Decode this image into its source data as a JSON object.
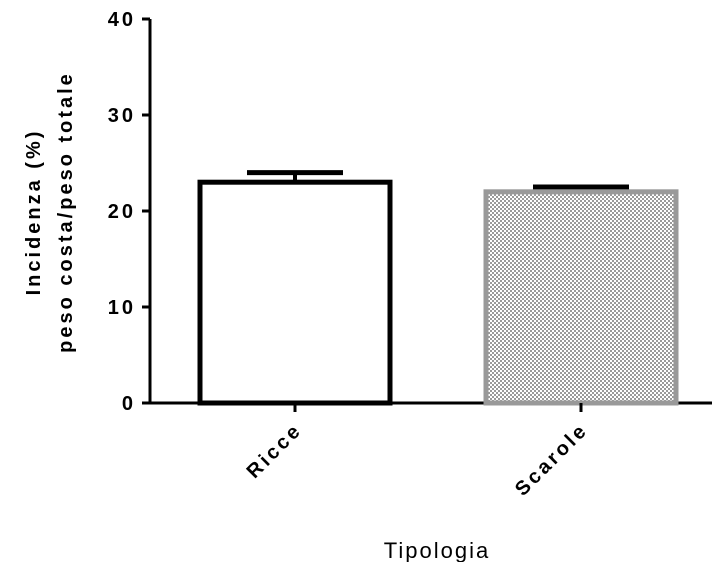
{
  "chart_data": {
    "type": "bar",
    "categories": [
      "Ricce",
      "Scarole"
    ],
    "values": [
      23,
      22
    ],
    "errors": [
      1,
      0.5
    ],
    "ylim": [
      0,
      40
    ],
    "yticks": [
      0,
      10,
      20,
      30,
      40
    ],
    "ytick_labels": [
      "0",
      "10",
      "20",
      "30",
      "40"
    ],
    "ylabel_line1": "Incidenza (%)",
    "ylabel_line2": "peso costa/peso totale",
    "xlabel": "Tipologia",
    "grid": false,
    "bar_styles": [
      {
        "fill": "#ffffff",
        "stroke": "#000000",
        "pattern": "none"
      },
      {
        "fill": "#ffffff",
        "stroke": "#999999",
        "pattern": "checker"
      }
    ]
  }
}
